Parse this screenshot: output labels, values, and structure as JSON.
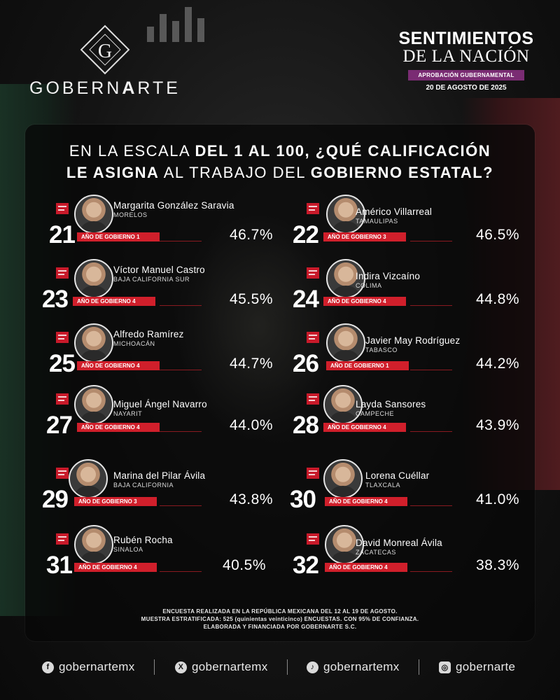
{
  "header": {
    "logo_letter": "G",
    "logo_text_regular": "GOBERN",
    "logo_text_bold": "A",
    "logo_text_tail": "RTE",
    "brand_line1": "SENTIMIENTOS",
    "brand_line2": "DE LA NACIÓN",
    "badge": "APROBACIÓN GUBERNAMENTAL",
    "date": "20 DE AGOSTO DE 2025"
  },
  "question": {
    "p1": "EN LA ESCALA ",
    "p2": "DEL 1 AL 100, ¿QUÉ CALIFICACIÓN",
    "p3": "LE ASIGNA",
    "p4": " AL TRABAJO DEL ",
    "p5": "GOBIERNO ESTATAL?"
  },
  "governors": [
    {
      "rank": "21",
      "name": "Margarita González Saravia",
      "state": "MORELOS",
      "year": "AÑO DE GOBIERNO 1",
      "pct": "46.7%"
    },
    {
      "rank": "22",
      "name": "Américo Villarreal",
      "state": "TAMAULIPAS",
      "year": "AÑO DE GOBIERNO 3",
      "pct": "46.5%"
    },
    {
      "rank": "23",
      "name": "Víctor Manuel Castro",
      "state": "BAJA CALIFORNIA SUR",
      "year": "AÑO DE GOBIERNO 4",
      "pct": "45.5%"
    },
    {
      "rank": "24",
      "name": "Indira Vizcaíno",
      "state": "COLIMA",
      "year": "AÑO DE GOBIERNO 4",
      "pct": "44.8%"
    },
    {
      "rank": "25",
      "name": "Alfredo Ramírez",
      "state": "MICHOACÁN",
      "year": "AÑO DE GOBIERNO 4",
      "pct": "44.7%"
    },
    {
      "rank": "26",
      "name": "Javier May Rodríguez",
      "state": "TABASCO",
      "year": "AÑO DE GOBIERNO 1",
      "pct": "44.2%"
    },
    {
      "rank": "27",
      "name": "Miguel Ángel Navarro",
      "state": "NAYARIT",
      "year": "AÑO DE GOBIERNO 4",
      "pct": "44.0%"
    },
    {
      "rank": "28",
      "name": "Layda Sansores",
      "state": "CAMPECHE",
      "year": "AÑO DE GOBIERNO 4",
      "pct": "43.9%"
    },
    {
      "rank": "29",
      "name": "Marina del Pilar Ávila",
      "state": "BAJA CALIFORNIA",
      "year": "AÑO DE GOBIERNO 3",
      "pct": "43.8%"
    },
    {
      "rank": "30",
      "name": "Lorena Cuéllar",
      "state": "TLAXCALA",
      "year": "AÑO DE GOBIERNO 4",
      "pct": "41.0%"
    },
    {
      "rank": "31",
      "name": "Rubén Rocha",
      "state": "SINALOA",
      "year": "AÑO DE GOBIERNO 4",
      "pct": "40.5%"
    },
    {
      "rank": "32",
      "name": "David Monreal Ávila",
      "state": "ZACATECAS",
      "year": "AÑO DE GOBIERNO 4",
      "pct": "38.3%"
    }
  ],
  "note": {
    "line1": "ENCUESTA REALIZADA EN LA REPÚBLICA MEXICANA DEL 12 AL 19 DE AGOSTO.",
    "line2": "MUESTRA ESTRATIFICADA: 525 (quinientas veinticinco) ENCUESTAS. CON 95% DE CONFIANZA.",
    "line3": "ELABORADA Y FINANCIADA POR GOBERNARTE S.C."
  },
  "socials": [
    {
      "icon": "facebook-icon",
      "glyph": "f",
      "handle": "gobernartemx"
    },
    {
      "icon": "x-icon",
      "glyph": "X",
      "handle": "gobernartemx"
    },
    {
      "icon": "tiktok-icon",
      "glyph": "♪",
      "handle": "gobernartemx"
    },
    {
      "icon": "instagram-icon",
      "glyph": "◎",
      "handle": "gobernarte"
    }
  ],
  "colors": {
    "accent_red": "#d01f2b",
    "badge_purple": "#7a2c73"
  }
}
